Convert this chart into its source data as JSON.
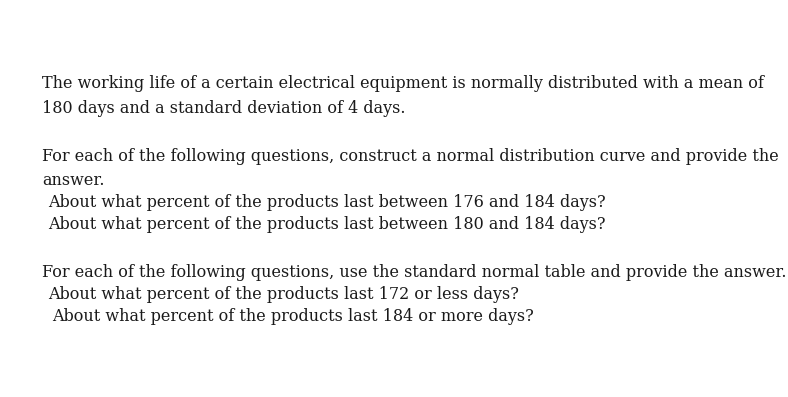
{
  "background_color": "#ffffff",
  "text_color": "#1a1a1a",
  "font_family": "DejaVu Serif",
  "font_size": 11.5,
  "fig_width": 7.88,
  "fig_height": 3.97,
  "dpi": 100,
  "lines": [
    {
      "xpx": 42,
      "ypx": 75,
      "text": "The working life of a certain electrical equipment is normally distributed with a mean of"
    },
    {
      "xpx": 42,
      "ypx": 100,
      "text": "180 days and a standard deviation of 4 days."
    },
    {
      "xpx": 42,
      "ypx": 148,
      "text": "For each of the following questions, construct a normal distribution curve and provide the"
    },
    {
      "xpx": 42,
      "ypx": 172,
      "text": "answer."
    },
    {
      "xpx": 48,
      "ypx": 194,
      "text": "About what percent of the products last between 176 and 184 days?"
    },
    {
      "xpx": 48,
      "ypx": 216,
      "text": "About what percent of the products last between 180 and 184 days?"
    },
    {
      "xpx": 42,
      "ypx": 264,
      "text": "For each of the following questions, use the standard normal table and provide the answer."
    },
    {
      "xpx": 48,
      "ypx": 286,
      "text": "About what percent of the products last 172 or less days?"
    },
    {
      "xpx": 52,
      "ypx": 308,
      "text": "About what percent of the products last 184 or more days?"
    }
  ]
}
